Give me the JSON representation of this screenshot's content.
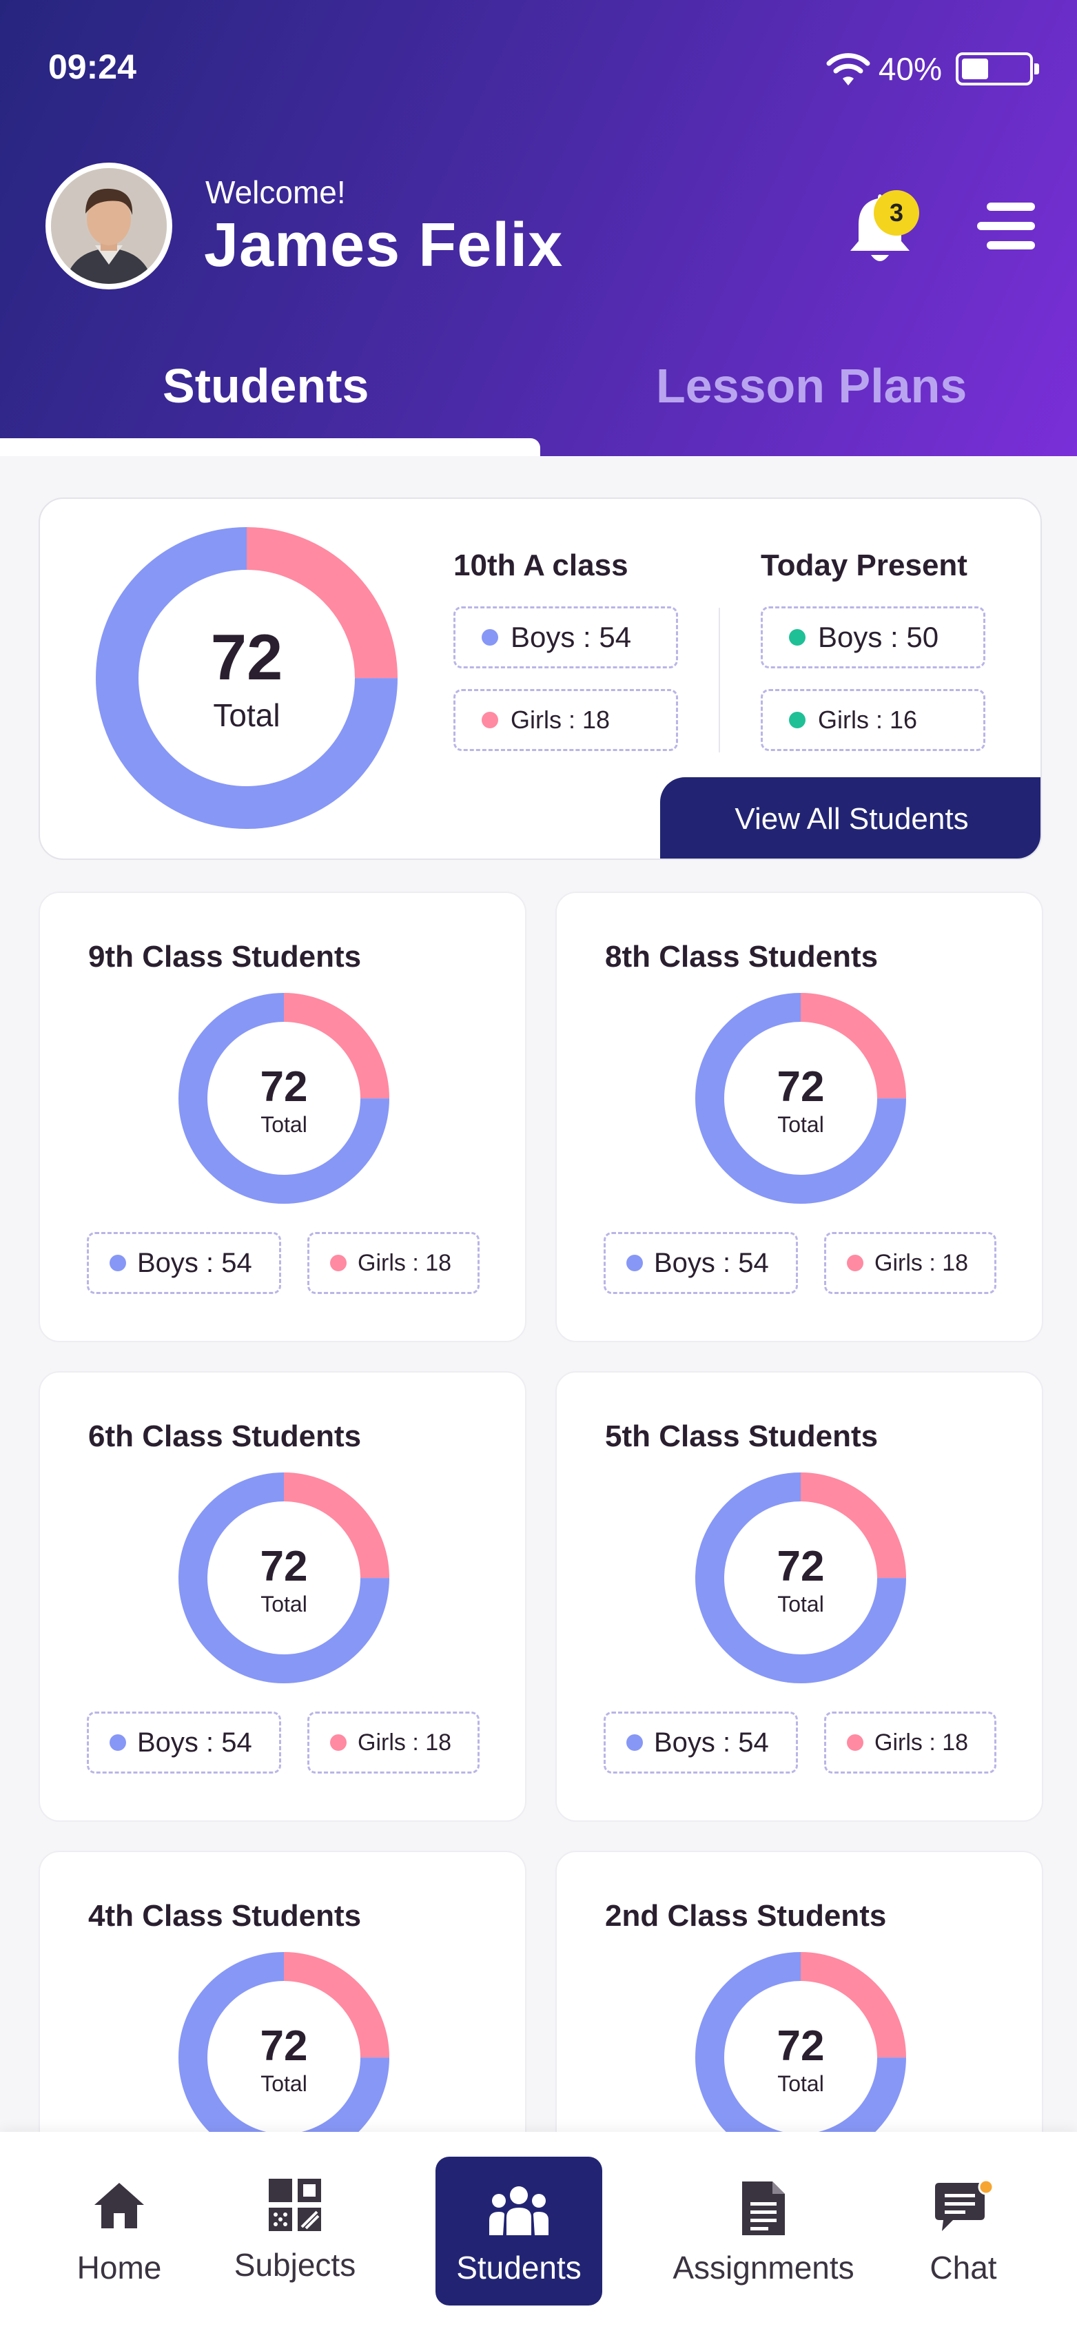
{
  "status_bar": {
    "time": "09:24",
    "battery_percent": "40%",
    "battery_level": 0.4
  },
  "header": {
    "welcome": "Welcome!",
    "user_name": "James Felix",
    "notification_count": "3",
    "icons": {
      "notifications": "bell-icon",
      "menu": "hamburger-menu-icon"
    }
  },
  "tabs": [
    {
      "label": "Students",
      "active": true
    },
    {
      "label": "Lesson Plans",
      "active": false
    }
  ],
  "summary": {
    "total": "72",
    "total_label": "Total",
    "class_heading": "10th A class",
    "class_boys": "Boys : 54",
    "class_girls": "Girls : 18",
    "present_heading": "Today Present",
    "present_boys": "Boys : 50",
    "present_girls": "Girls : 16",
    "view_all_label": "View All Students",
    "boys_value": 54,
    "girls_value": 18
  },
  "classes": [
    {
      "title": "9th Class Students",
      "total": "72",
      "total_label": "Total",
      "boys": "Boys : 54",
      "girls": "Girls : 18",
      "boys_value": 54,
      "girls_value": 18
    },
    {
      "title": "8th Class Students",
      "total": "72",
      "total_label": "Total",
      "boys": "Boys : 54",
      "girls": "Girls : 18",
      "boys_value": 54,
      "girls_value": 18
    },
    {
      "title": "6th Class Students",
      "total": "72",
      "total_label": "Total",
      "boys": "Boys : 54",
      "girls": "Girls : 18",
      "boys_value": 54,
      "girls_value": 18
    },
    {
      "title": "5th Class Students",
      "total": "72",
      "total_label": "Total",
      "boys": "Boys : 54",
      "girls": "Girls : 18",
      "boys_value": 54,
      "girls_value": 18
    },
    {
      "title": "4th Class Students",
      "total": "72",
      "total_label": "Total",
      "boys_value": 54,
      "girls_value": 18
    },
    {
      "title": "2nd Class Students",
      "total": "72",
      "total_label": "Total",
      "boys_value": 54,
      "girls_value": 18
    }
  ],
  "colors": {
    "boys": "#8797f6",
    "girls": "#ff8aa2",
    "present": "#1fc096",
    "accent": "#222473",
    "badge": "#f4d41c",
    "chat_dot": "#f7a531"
  },
  "bottom_nav": [
    {
      "label": "Home",
      "icon": "home-icon",
      "active": false
    },
    {
      "label": "Subjects",
      "icon": "subjects-grid-icon",
      "active": false
    },
    {
      "label": "Students",
      "icon": "students-group-icon",
      "active": true
    },
    {
      "label": "Assignments",
      "icon": "document-icon",
      "active": false
    },
    {
      "label": "Chat",
      "icon": "chat-icon",
      "active": false
    }
  ]
}
